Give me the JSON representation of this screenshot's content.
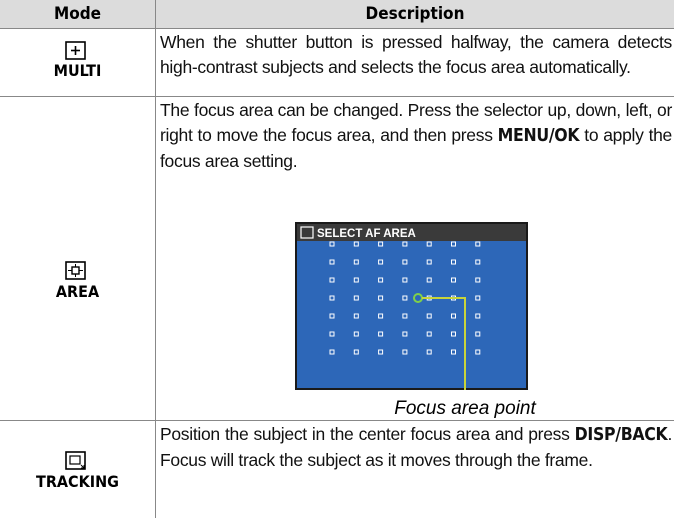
{
  "table": {
    "header": [
      "Mode",
      "Description"
    ],
    "rows": [
      {
        "mode": "MULTI",
        "description": [
          {
            "text": "When the shutter button is pressed halfway, the camera detects high-contrast subjects and selects the focus area automatically.",
            "bold": false
          }
        ]
      },
      {
        "mode": "AREA",
        "description": [
          {
            "text": "The focus area can be changed. Press the selector up, down, left, or right to move the focus area, and then press ",
            "bold": false
          },
          {
            "text": "MENU/OK",
            "bold": true
          },
          {
            "text": " to apply the focus area setting.",
            "bold": false
          }
        ],
        "screen": {
          "title": "SELECT AF AREA",
          "caption": "Focus area point"
        }
      },
      {
        "mode": "TRACKING",
        "description": [
          {
            "text": "Position the subject in the center focus area and press ",
            "bold": false
          },
          {
            "text": "DISP/BACK",
            "bold": true
          },
          {
            "text": ". Focus will track the subject as it moves through the frame.",
            "bold": false
          }
        ]
      }
    ]
  }
}
